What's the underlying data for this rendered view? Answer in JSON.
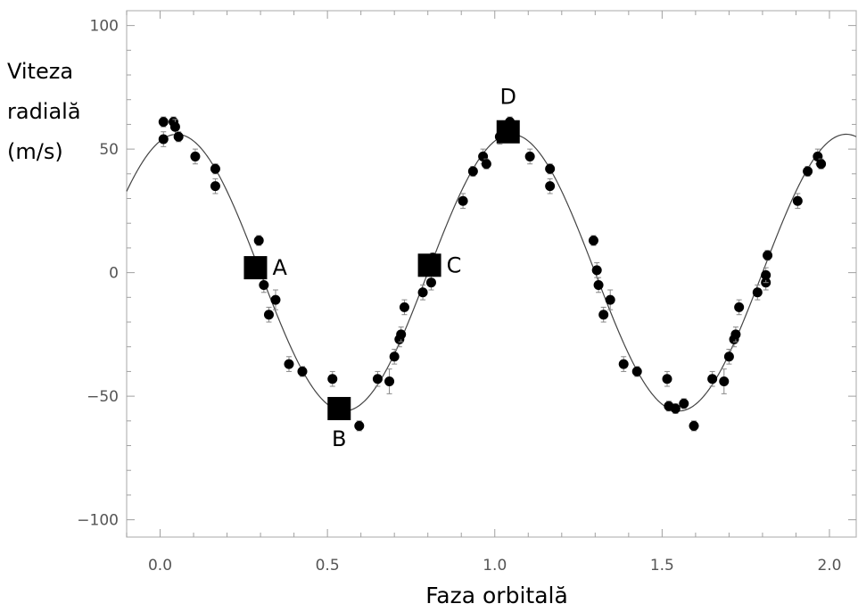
{
  "chart_data": {
    "type": "scatter",
    "xlabel": "Faza orbitală",
    "ylabel_lines": [
      "Viteza",
      "radială",
      "(m/s)"
    ],
    "xlim": [
      -0.1,
      2.08
    ],
    "ylim": [
      -107,
      106
    ],
    "xticks": [
      0.0,
      0.5,
      1.0,
      1.5,
      2.0
    ],
    "xtick_labels": [
      "0.0",
      "0.5",
      "1.0",
      "1.5",
      "2.0"
    ],
    "yticks": [
      100,
      50,
      0,
      -50,
      -100
    ],
    "ytick_labels": [
      "100",
      "50",
      "0",
      "−50",
      "−100"
    ],
    "grid": false,
    "fit_curve": {
      "amplitude": 56,
      "period": 1.0,
      "phase_of_max": 0.05
    },
    "points": [
      {
        "x": 0.01,
        "y": 61,
        "err": 2
      },
      {
        "x": 0.01,
        "y": 54,
        "err": 3
      },
      {
        "x": 0.04,
        "y": 61,
        "err": 2
      },
      {
        "x": 0.045,
        "y": 59,
        "err": 3
      },
      {
        "x": 0.055,
        "y": 55,
        "err": 2
      },
      {
        "x": 0.105,
        "y": 47,
        "err": 3
      },
      {
        "x": 0.165,
        "y": 42,
        "err": 2
      },
      {
        "x": 0.165,
        "y": 35,
        "err": 3
      },
      {
        "x": 0.295,
        "y": 13,
        "err": 2
      },
      {
        "x": 0.31,
        "y": -5,
        "err": 3
      },
      {
        "x": 0.325,
        "y": -17,
        "err": 3
      },
      {
        "x": 0.345,
        "y": -11,
        "err": 4
      },
      {
        "x": 0.385,
        "y": -37,
        "err": 3
      },
      {
        "x": 0.425,
        "y": -40,
        "err": 2
      },
      {
        "x": 0.515,
        "y": -43,
        "err": 3
      },
      {
        "x": 0.595,
        "y": -62,
        "err": 2
      },
      {
        "x": 0.65,
        "y": -43,
        "err": 3
      },
      {
        "x": 0.685,
        "y": -44,
        "err": 5
      },
      {
        "x": 0.7,
        "y": -34,
        "err": 3
      },
      {
        "x": 0.715,
        "y": -27,
        "err": 3
      },
      {
        "x": 0.72,
        "y": -25,
        "err": 3
      },
      {
        "x": 0.73,
        "y": -14,
        "err": 3
      },
      {
        "x": 0.785,
        "y": -8,
        "err": 3
      },
      {
        "x": 0.81,
        "y": -4,
        "err": 3
      },
      {
        "x": 0.815,
        "y": 6,
        "err": 2
      },
      {
        "x": 0.905,
        "y": 29,
        "err": 3
      },
      {
        "x": 0.935,
        "y": 41,
        "err": 2
      },
      {
        "x": 0.965,
        "y": 47,
        "err": 3
      },
      {
        "x": 0.975,
        "y": 44,
        "err": 2
      },
      {
        "x": 1.015,
        "y": 55,
        "err": 3
      },
      {
        "x": 1.045,
        "y": 61,
        "err": 2
      },
      {
        "x": 1.105,
        "y": 47,
        "err": 3
      },
      {
        "x": 1.165,
        "y": 42,
        "err": 2
      },
      {
        "x": 1.165,
        "y": 35,
        "err": 3
      },
      {
        "x": 1.295,
        "y": 13,
        "err": 2
      },
      {
        "x": 1.305,
        "y": 1,
        "err": 3
      },
      {
        "x": 1.31,
        "y": -5,
        "err": 3
      },
      {
        "x": 1.325,
        "y": -17,
        "err": 3
      },
      {
        "x": 1.345,
        "y": -11,
        "err": 4
      },
      {
        "x": 1.385,
        "y": -37,
        "err": 3
      },
      {
        "x": 1.425,
        "y": -40,
        "err": 2
      },
      {
        "x": 1.515,
        "y": -43,
        "err": 3
      },
      {
        "x": 1.52,
        "y": -54,
        "err": 2
      },
      {
        "x": 1.54,
        "y": -55,
        "err": 2
      },
      {
        "x": 1.565,
        "y": -53,
        "err": 2
      },
      {
        "x": 1.595,
        "y": -62,
        "err": 2
      },
      {
        "x": 1.65,
        "y": -43,
        "err": 3
      },
      {
        "x": 1.685,
        "y": -44,
        "err": 5
      },
      {
        "x": 1.7,
        "y": -34,
        "err": 3
      },
      {
        "x": 1.715,
        "y": -27,
        "err": 3
      },
      {
        "x": 1.72,
        "y": -25,
        "err": 3
      },
      {
        "x": 1.73,
        "y": -14,
        "err": 3
      },
      {
        "x": 1.785,
        "y": -8,
        "err": 3
      },
      {
        "x": 1.81,
        "y": -4,
        "err": 3
      },
      {
        "x": 1.81,
        "y": -1,
        "err": 3
      },
      {
        "x": 1.815,
        "y": 7,
        "err": 2
      },
      {
        "x": 1.905,
        "y": 29,
        "err": 3
      },
      {
        "x": 1.935,
        "y": 41,
        "err": 2
      },
      {
        "x": 1.965,
        "y": 47,
        "err": 3
      },
      {
        "x": 1.975,
        "y": 44,
        "err": 2
      }
    ],
    "markers": [
      {
        "label": "A",
        "x": 0.285,
        "y": 2,
        "label_pos": "right"
      },
      {
        "label": "B",
        "x": 0.535,
        "y": -55,
        "label_pos": "below"
      },
      {
        "label": "C",
        "x": 0.805,
        "y": 3,
        "label_pos": "right"
      },
      {
        "label": "D",
        "x": 1.04,
        "y": 57,
        "label_pos": "above"
      }
    ]
  }
}
